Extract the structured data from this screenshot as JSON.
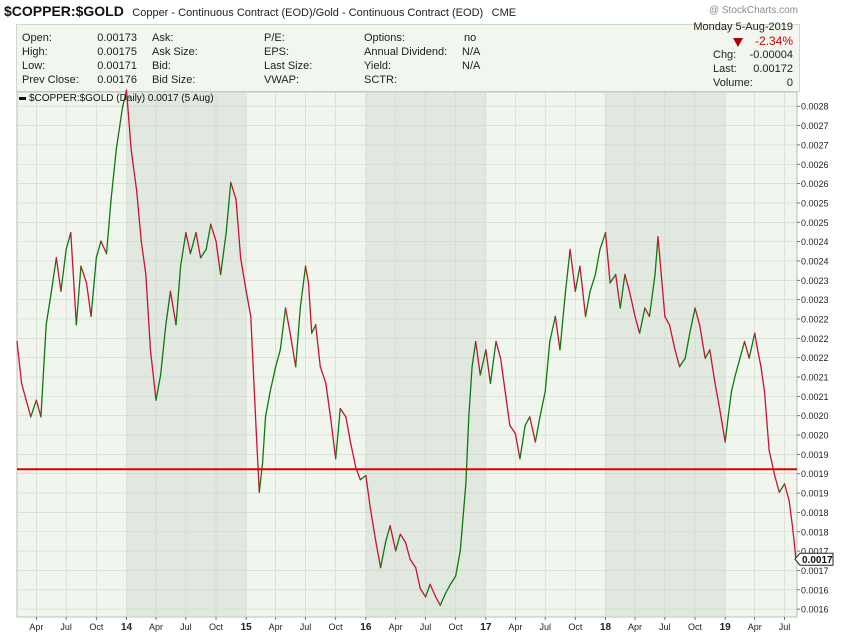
{
  "header": {
    "symbol": "$COPPER:$GOLD",
    "description": "Copper - Continuous Contract (EOD)/Gold - Continuous Contract (EOD)",
    "exchange": "CME",
    "watermark": "@ StockCharts.com"
  },
  "quote": {
    "open_label": "Open:",
    "open": "0.00173",
    "high_label": "High:",
    "high": "0.00175",
    "low_label": "Low:",
    "low": "0.00171",
    "prev_close_label": "Prev Close:",
    "prev_close": "0.00176",
    "ask_label": "Ask:",
    "ask": "",
    "ask_size_label": "Ask Size:",
    "ask_size": "",
    "bid_label": "Bid:",
    "bid": "",
    "bid_size_label": "Bid Size:",
    "bid_size": "",
    "pe_label": "P/E:",
    "eps_label": "EPS:",
    "last_size_label": "Last Size:",
    "vwap_label": "VWAP:",
    "options_label": "Options:",
    "options": "no",
    "dividend_label": "Annual Dividend:",
    "dividend": "N/A",
    "yield_label": "Yield:",
    "yield": "N/A",
    "sctr_label": "SCTR:",
    "date": "Monday  5-Aug-2019",
    "pct_change": "-2.34%",
    "chg_label": "Chg:",
    "chg": "-0.00004",
    "last_label": "Last:",
    "last": "0.00172",
    "volume_label": "Volume:",
    "volume": "0"
  },
  "legend": {
    "text": "$COPPER:$GOLD (Daily) 0.0017 (5 Aug)"
  },
  "colors": {
    "price_up": "#0d7a0d",
    "price_down": "#cc1133",
    "reference_line": "#dd0000",
    "panel_light": "#f0f6ee",
    "panel_dark": "#e1e8df",
    "grid": "#cdd6cb"
  },
  "chart_data": {
    "type": "line",
    "series_name": "$COPPER:$GOLD (Daily)",
    "frequency": "daily, red/green segments by direction",
    "x_range": [
      "2013-02",
      "2019-08"
    ],
    "y_axis": {
      "side": "right",
      "tick_labels": [
        "0.0028",
        "0.0027",
        "0.0027",
        "0.0026",
        "0.0026",
        "0.0025",
        "0.0025",
        "0.0024",
        "0.0024",
        "0.0023",
        "0.0023",
        "0.0022",
        "0.0022",
        "0.0022",
        "0.0021",
        "0.0021",
        "0.0020",
        "0.0020",
        "0.0019",
        "0.0019",
        "0.0019",
        "0.0018",
        "0.0018",
        "0.0017",
        "0.0017",
        "0.0016",
        "0.0016"
      ],
      "ylim": [
        0.001582,
        0.002836
      ]
    },
    "x_axis": {
      "tick_labels": [
        "Apr",
        "Jul",
        "Oct",
        "14",
        "Apr",
        "Jul",
        "Oct",
        "15",
        "Apr",
        "Jul",
        "Oct",
        "16",
        "Apr",
        "Jul",
        "Oct",
        "17",
        "Apr",
        "Jul",
        "Oct",
        "18",
        "Apr",
        "Jul",
        "Oct",
        "19",
        "Apr",
        "Jul"
      ],
      "tick_dates": [
        "2013-04",
        "2013-07",
        "2013-10",
        "2014-01",
        "2014-04",
        "2014-07",
        "2014-10",
        "2015-01",
        "2015-04",
        "2015-07",
        "2015-10",
        "2016-01",
        "2016-04",
        "2016-07",
        "2016-10",
        "2017-01",
        "2017-04",
        "2017-07",
        "2017-10",
        "2018-01",
        "2018-04",
        "2018-07",
        "2018-10",
        "2019-01",
        "2019-04",
        "2019-07"
      ]
    },
    "shaded_years": [
      "2014",
      "2016",
      "2018"
    ],
    "horizontal_line": {
      "value": 0.001935
    },
    "last_value_label": "0.0017",
    "last_value": 0.00172,
    "points": [
      [
        "2013-02-01",
        0.00224
      ],
      [
        "2013-02-15",
        0.00214
      ],
      [
        "2013-03-01",
        0.0021
      ],
      [
        "2013-03-15",
        0.00206
      ],
      [
        "2013-04-01",
        0.0021
      ],
      [
        "2013-04-15",
        0.00206
      ],
      [
        "2013-05-01",
        0.00228
      ],
      [
        "2013-05-15",
        0.00235
      ],
      [
        "2013-06-01",
        0.00244
      ],
      [
        "2013-06-15",
        0.00236
      ],
      [
        "2013-07-01",
        0.00246
      ],
      [
        "2013-07-15",
        0.0025
      ],
      [
        "2013-08-01",
        0.00228
      ],
      [
        "2013-08-15",
        0.00242
      ],
      [
        "2013-09-01",
        0.00238
      ],
      [
        "2013-09-15",
        0.0023
      ],
      [
        "2013-10-01",
        0.00244
      ],
      [
        "2013-10-15",
        0.00248
      ],
      [
        "2013-11-01",
        0.00245
      ],
      [
        "2013-11-15",
        0.00258
      ],
      [
        "2013-12-01",
        0.0027
      ],
      [
        "2013-12-20",
        0.0028
      ],
      [
        "2014-01-01",
        0.00284
      ],
      [
        "2014-01-15",
        0.0027
      ],
      [
        "2014-02-01",
        0.0026
      ],
      [
        "2014-02-15",
        0.00248
      ],
      [
        "2014-03-01",
        0.0024
      ],
      [
        "2014-03-15",
        0.00222
      ],
      [
        "2014-04-01",
        0.0021
      ],
      [
        "2014-04-15",
        0.00216
      ],
      [
        "2014-05-01",
        0.00228
      ],
      [
        "2014-05-15",
        0.00236
      ],
      [
        "2014-06-01",
        0.00228
      ],
      [
        "2014-06-15",
        0.00242
      ],
      [
        "2014-07-01",
        0.0025
      ],
      [
        "2014-07-15",
        0.00245
      ],
      [
        "2014-08-01",
        0.0025
      ],
      [
        "2014-08-15",
        0.00244
      ],
      [
        "2014-09-01",
        0.00246
      ],
      [
        "2014-09-15",
        0.00252
      ],
      [
        "2014-10-01",
        0.00248
      ],
      [
        "2014-10-15",
        0.0024
      ],
      [
        "2014-11-01",
        0.0025
      ],
      [
        "2014-11-15",
        0.00262
      ],
      [
        "2014-12-01",
        0.00258
      ],
      [
        "2014-12-15",
        0.00244
      ],
      [
        "2015-01-01",
        0.00236
      ],
      [
        "2015-01-15",
        0.0023
      ],
      [
        "2015-02-01",
        0.00202
      ],
      [
        "2015-02-10",
        0.00188
      ],
      [
        "2015-02-20",
        0.00195
      ],
      [
        "2015-03-01",
        0.00206
      ],
      [
        "2015-03-15",
        0.00212
      ],
      [
        "2015-04-01",
        0.00218
      ],
      [
        "2015-04-15",
        0.00222
      ],
      [
        "2015-05-01",
        0.00232
      ],
      [
        "2015-05-15",
        0.00226
      ],
      [
        "2015-06-01",
        0.00218
      ],
      [
        "2015-06-15",
        0.00232
      ],
      [
        "2015-07-01",
        0.00242
      ],
      [
        "2015-07-10",
        0.00238
      ],
      [
        "2015-07-20",
        0.00226
      ],
      [
        "2015-08-01",
        0.00228
      ],
      [
        "2015-08-15",
        0.00218
      ],
      [
        "2015-09-01",
        0.00214
      ],
      [
        "2015-09-15",
        0.00206
      ],
      [
        "2015-10-01",
        0.00196
      ],
      [
        "2015-10-15",
        0.00208
      ],
      [
        "2015-11-01",
        0.00206
      ],
      [
        "2015-11-15",
        0.002
      ],
      [
        "2015-12-01",
        0.00194
      ],
      [
        "2015-12-15",
        0.00191
      ],
      [
        "2016-01-01",
        0.00192
      ],
      [
        "2016-01-15",
        0.00184
      ],
      [
        "2016-02-01",
        0.00176
      ],
      [
        "2016-02-15",
        0.0017
      ],
      [
        "2016-03-01",
        0.00176
      ],
      [
        "2016-03-15",
        0.0018
      ],
      [
        "2016-04-01",
        0.00174
      ],
      [
        "2016-04-15",
        0.00178
      ],
      [
        "2016-05-01",
        0.00176
      ],
      [
        "2016-05-15",
        0.00172
      ],
      [
        "2016-06-01",
        0.0017
      ],
      [
        "2016-06-15",
        0.00165
      ],
      [
        "2016-07-01",
        0.00163
      ],
      [
        "2016-07-15",
        0.00166
      ],
      [
        "2016-08-01",
        0.00163
      ],
      [
        "2016-08-15",
        0.00161
      ],
      [
        "2016-09-01",
        0.00164
      ],
      [
        "2016-09-15",
        0.00166
      ],
      [
        "2016-10-01",
        0.00168
      ],
      [
        "2016-10-15",
        0.00174
      ],
      [
        "2016-11-01",
        0.0019
      ],
      [
        "2016-11-10",
        0.00206
      ],
      [
        "2016-11-20",
        0.00218
      ],
      [
        "2016-12-01",
        0.00224
      ],
      [
        "2016-12-15",
        0.00216
      ],
      [
        "2017-01-01",
        0.00222
      ],
      [
        "2017-01-15",
        0.00214
      ],
      [
        "2017-02-01",
        0.00224
      ],
      [
        "2017-02-15",
        0.0022
      ],
      [
        "2017-03-01",
        0.00212
      ],
      [
        "2017-03-15",
        0.00204
      ],
      [
        "2017-04-01",
        0.00202
      ],
      [
        "2017-04-15",
        0.00196
      ],
      [
        "2017-05-01",
        0.00204
      ],
      [
        "2017-05-15",
        0.00206
      ],
      [
        "2017-06-01",
        0.002
      ],
      [
        "2017-06-15",
        0.00206
      ],
      [
        "2017-07-01",
        0.00212
      ],
      [
        "2017-07-15",
        0.00224
      ],
      [
        "2017-08-01",
        0.0023
      ],
      [
        "2017-08-15",
        0.00222
      ],
      [
        "2017-09-01",
        0.00236
      ],
      [
        "2017-09-15",
        0.00246
      ],
      [
        "2017-10-01",
        0.00236
      ],
      [
        "2017-10-15",
        0.00242
      ],
      [
        "2017-11-01",
        0.0023
      ],
      [
        "2017-11-15",
        0.00236
      ],
      [
        "2017-12-01",
        0.0024
      ],
      [
        "2017-12-15",
        0.00246
      ],
      [
        "2018-01-01",
        0.0025
      ],
      [
        "2018-01-15",
        0.00238
      ],
      [
        "2018-02-01",
        0.0024
      ],
      [
        "2018-02-15",
        0.00232
      ],
      [
        "2018-03-01",
        0.0024
      ],
      [
        "2018-03-15",
        0.00236
      ],
      [
        "2018-04-01",
        0.0023
      ],
      [
        "2018-04-15",
        0.00226
      ],
      [
        "2018-05-01",
        0.00232
      ],
      [
        "2018-05-15",
        0.0023
      ],
      [
        "2018-06-01",
        0.0024
      ],
      [
        "2018-06-10",
        0.00249
      ],
      [
        "2018-06-20",
        0.0024
      ],
      [
        "2018-07-01",
        0.0023
      ],
      [
        "2018-07-15",
        0.00228
      ],
      [
        "2018-08-01",
        0.00222
      ],
      [
        "2018-08-15",
        0.00218
      ],
      [
        "2018-09-01",
        0.0022
      ],
      [
        "2018-09-15",
        0.00226
      ],
      [
        "2018-10-01",
        0.00232
      ],
      [
        "2018-10-15",
        0.00228
      ],
      [
        "2018-11-01",
        0.0022
      ],
      [
        "2018-11-15",
        0.00222
      ],
      [
        "2018-12-01",
        0.00214
      ],
      [
        "2018-12-15",
        0.00208
      ],
      [
        "2019-01-01",
        0.002
      ],
      [
        "2019-01-10",
        0.00206
      ],
      [
        "2019-01-20",
        0.00212
      ],
      [
        "2019-02-01",
        0.00216
      ],
      [
        "2019-02-15",
        0.0022
      ],
      [
        "2019-03-01",
        0.00224
      ],
      [
        "2019-03-15",
        0.0022
      ],
      [
        "2019-04-01",
        0.00226
      ],
      [
        "2019-04-10",
        0.00222
      ],
      [
        "2019-04-20",
        0.00218
      ],
      [
        "2019-05-01",
        0.00212
      ],
      [
        "2019-05-15",
        0.00198
      ],
      [
        "2019-06-01",
        0.00192
      ],
      [
        "2019-06-15",
        0.00188
      ],
      [
        "2019-07-01",
        0.0019
      ],
      [
        "2019-07-15",
        0.00186
      ],
      [
        "2019-07-25",
        0.0018
      ],
      [
        "2019-08-05",
        0.00172
      ]
    ]
  }
}
